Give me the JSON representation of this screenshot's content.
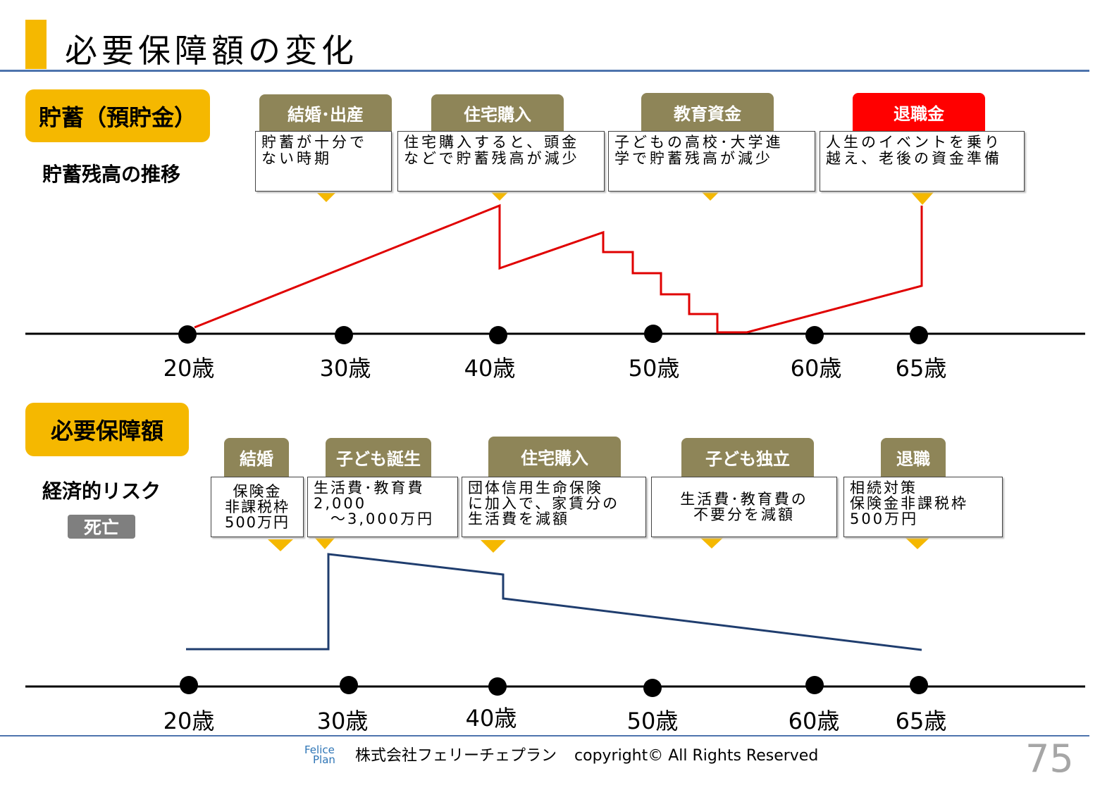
{
  "title": "必要保障額の変化",
  "savings": {
    "badge": "貯蓄（預貯金）",
    "subtitle": "貯蓄残高の推移",
    "events": [
      {
        "label": "結婚･出産",
        "text": "貯蓄が十分で\nない時期",
        "highlight": false
      },
      {
        "label": "住宅購入",
        "text": "住宅購入すると、頭金\nなどで貯蓄残高が減少",
        "highlight": false
      },
      {
        "label": "教育資金",
        "text": "子どもの高校･大学進\n学で貯蓄残高が減少",
        "highlight": false
      },
      {
        "label": "退職金",
        "text": "人生のイベントを乗り\n越え、老後の資金準備",
        "highlight": true
      }
    ],
    "ages": [
      "20歳",
      "30歳",
      "40歳",
      "50歳",
      "60歳",
      "65歳"
    ]
  },
  "coverage": {
    "badge": "必要保障額",
    "subtitle": "経済的リスク",
    "risk_tag": "死亡",
    "events": [
      {
        "label": "結婚",
        "text": "保険金\n非課税枠\n500万円"
      },
      {
        "label": "子ども誕生",
        "text": "生活費･教育費\n2,000\n　～3,000万円"
      },
      {
        "label": "住宅購入",
        "text": "団体信用生命保険\nに加入で、家賃分の\n生活費を減額"
      },
      {
        "label": "子ども独立",
        "text": "生活費･教育費の\n不要分を減額"
      },
      {
        "label": "退職",
        "text": "相続対策\n保険金非課税枠\n500万円"
      }
    ],
    "ages": [
      "20歳",
      "30歳",
      "40歳",
      "50歳",
      "60歳",
      "65歳"
    ]
  },
  "colors": {
    "accent": "#f5b800",
    "event_tab": "#8e8558",
    "savings_line": "#e00000",
    "coverage_line": "#1f3d6e",
    "rule": "#4d74ad"
  },
  "footer": {
    "logo_line1": "Felice",
    "logo_line2": "Plan",
    "company": "株式会社フェリーチェプラン",
    "copyright": "copyright© All Rights Reserved",
    "page_number": "75"
  }
}
